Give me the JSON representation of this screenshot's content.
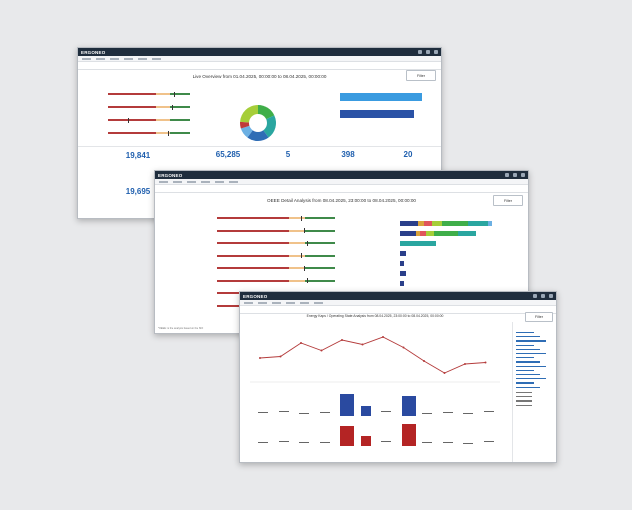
{
  "brand": "ERGONEO",
  "win1": {
    "title": "Live Overview from 01.04.2025, 00:00:00 to 08.04.2025, 00:00:00",
    "filter_label": "Filter",
    "kpis": [
      {
        "value": "19,841"
      },
      {
        "value": "65,285"
      },
      {
        "value": "5"
      },
      {
        "value": "398"
      },
      {
        "value": "20"
      },
      {
        "value": "19,695"
      }
    ],
    "bars_h": [
      0.9,
      0.8
    ],
    "donut": [
      {
        "frac": 0.18,
        "color": "#3fae49"
      },
      {
        "frac": 0.22,
        "color": "#2aa6a0"
      },
      {
        "frac": 0.2,
        "color": "#2f6db5"
      },
      {
        "frac": 0.1,
        "color": "#6cb0e3"
      },
      {
        "frac": 0.06,
        "color": "#c03a3a"
      },
      {
        "frac": 0.24,
        "color": "#a6ce39"
      }
    ]
  },
  "win2": {
    "title": "OEEE Detail Analysis from 08.04.2025, 23:00:00 to 08.04.2025, 00:00:00",
    "filter_label": "Filter",
    "note": "*OEEE: is the analysis based on the ISO"
  },
  "win3": {
    "title": "Energy Kaps / Operating State Analysis from 08.04.2025, 23:00:00 to 08.04.2025, 00:00:00",
    "filter_label": "Filter",
    "line_values": [
      180,
      185,
      230,
      205,
      240,
      225,
      250,
      215,
      170,
      130,
      160,
      165
    ],
    "blue_bars": [
      0.15,
      0.2,
      0.1,
      0.15,
      0.9,
      0.4,
      0.2,
      0.85,
      0.1,
      0.15,
      0.1,
      0.2
    ],
    "red_bars": [
      0.15,
      0.2,
      0.15,
      0.15,
      0.85,
      0.4,
      0.2,
      0.9,
      0.15,
      0.15,
      0.1,
      0.2
    ],
    "colors": {
      "accent": "#1f5fae",
      "line": "#b43b3b",
      "blue": "#2a4aa0",
      "red": "#b42424"
    }
  }
}
